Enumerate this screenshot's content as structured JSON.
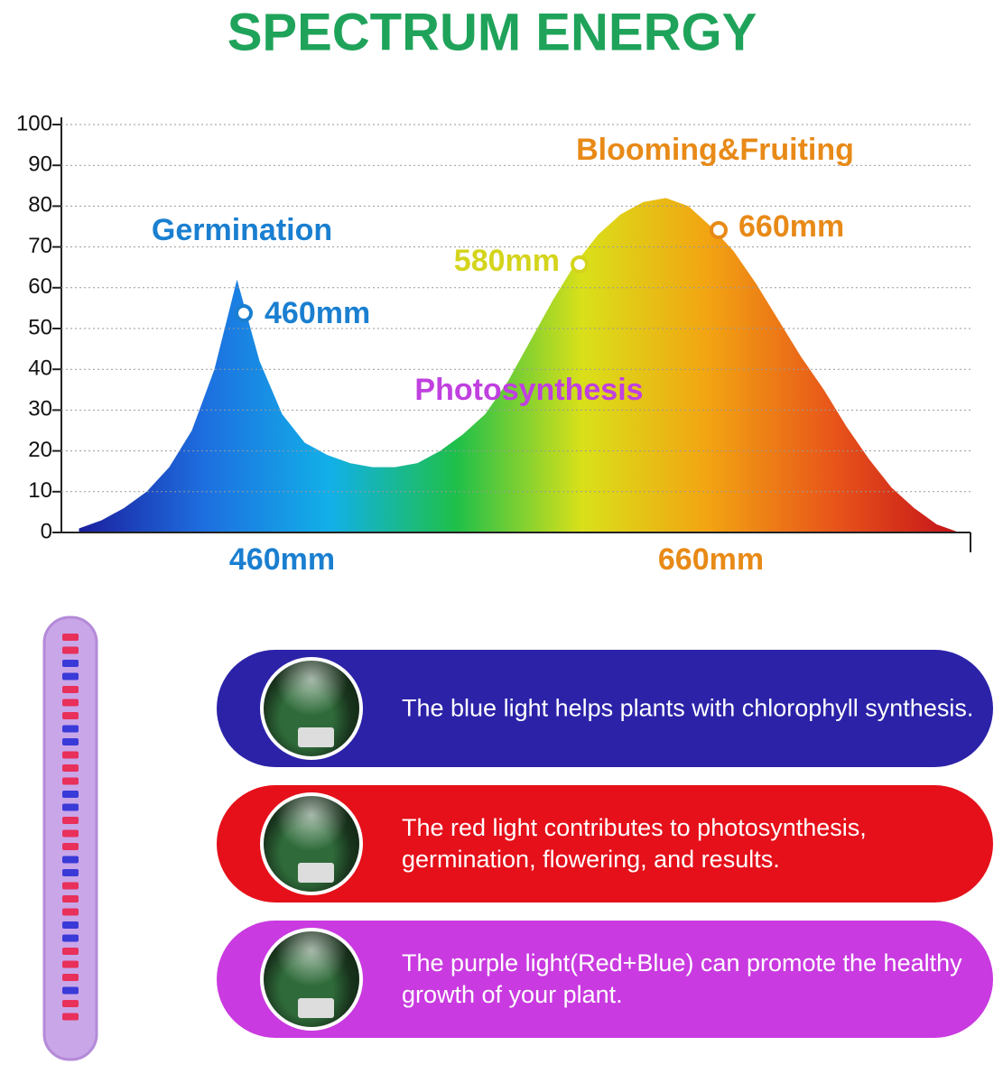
{
  "chart_data": {
    "type": "area",
    "title": "SPECTRUM ENERGY",
    "categories": [
      null,
      null,
      null,
      null,
      null,
      null,
      null,
      null,
      null,
      "460mm",
      null,
      null,
      null,
      null,
      null,
      null,
      null,
      null,
      null,
      null,
      null,
      null,
      null,
      null,
      null,
      null,
      null,
      null,
      "660mm",
      null,
      null,
      null,
      null,
      null,
      null,
      null,
      null,
      null,
      null,
      null
    ],
    "values": [
      1,
      3,
      6,
      10,
      16,
      25,
      40,
      62,
      42,
      29,
      22,
      19,
      17,
      16,
      16,
      17,
      20,
      24,
      29,
      37,
      47,
      57,
      66,
      73,
      78,
      81,
      82,
      80,
      75,
      69,
      61,
      52,
      43,
      35,
      26,
      18,
      11,
      6,
      2,
      0
    ],
    "colors": [
      "#1c1f9e",
      "#1d6fe0",
      "#12b0e8",
      "#1fbf4a",
      "#d9e01a",
      "#f2a412",
      "#e8551a",
      "#c4121a"
    ],
    "ylim": [
      0,
      100
    ],
    "yticks": [
      0,
      10,
      20,
      30,
      40,
      50,
      60,
      70,
      80,
      90,
      100
    ],
    "grid": true,
    "annotations": [
      {
        "text": "Germination",
        "color": "#1a7fd0"
      },
      {
        "text": "460mm",
        "color": "#1a7fd0"
      },
      {
        "text": "Blooming&Fruiting",
        "color": "#e88a17"
      },
      {
        "text": "580mm",
        "color": "#d4d41c"
      },
      {
        "text": "660mm",
        "color": "#e88a17"
      },
      {
        "text": "Photosynthesis",
        "color": "#c040e0"
      }
    ],
    "x_label_colors": [
      "#1a7fd0",
      "#e88a17"
    ]
  },
  "panels": [
    {
      "text": "The blue light helps plants with chlorophyll synthesis.",
      "color": "#2b22a8"
    },
    {
      "text": "The red light contributes to photosynthesis, germination, flowering, and results.",
      "color": "#e5101a"
    },
    {
      "text": "The purple light(Red+Blue) can promote the healthy growth of your plant.",
      "color": "#c93ae0"
    }
  ]
}
